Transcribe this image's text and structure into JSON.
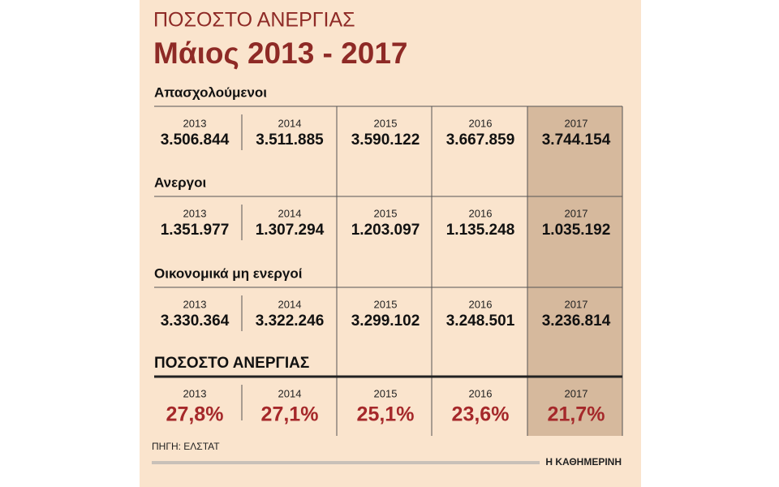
{
  "header": {
    "title": "ΠΟΣΟΣΤΟ ΑΝΕΡΓΙΑΣ",
    "subtitle": "Μάιος 2013 - 2017"
  },
  "sections": [
    {
      "label": "Απασχολούμενοι",
      "years": [
        "2013",
        "2014",
        "2015",
        "2016",
        "2017"
      ],
      "values": [
        "3.506.844",
        "3.511.885",
        "3.590.122",
        "3.667.859",
        "3.744.154"
      ]
    },
    {
      "label": "Ανεργοι",
      "years": [
        "2013",
        "2014",
        "2015",
        "2016",
        "2017"
      ],
      "values": [
        "1.351.977",
        "1.307.294",
        "1.203.097",
        "1.135.248",
        "1.035.192"
      ]
    },
    {
      "label": "Οικονομικά μη ενεργοί",
      "years": [
        "2013",
        "2014",
        "2015",
        "2016",
        "2017"
      ],
      "values": [
        "3.330.364",
        "3.322.246",
        "3.299.102",
        "3.248.501",
        "3.236.814"
      ]
    },
    {
      "label": "ΠΟΣΟΣΤΟ ΑΝΕΡΓΙΑΣ",
      "years": [
        "2013",
        "2014",
        "2015",
        "2016",
        "2017"
      ],
      "values": [
        "27,8%",
        "27,1%",
        "25,1%",
        "23,6%",
        "21,7%"
      ]
    }
  ],
  "footer": {
    "source": "ΠΗΓΗ: ΕΛΣΤΑΤ",
    "brand": "Η ΚΑΘΗΜΕΡΙΝΗ"
  }
}
